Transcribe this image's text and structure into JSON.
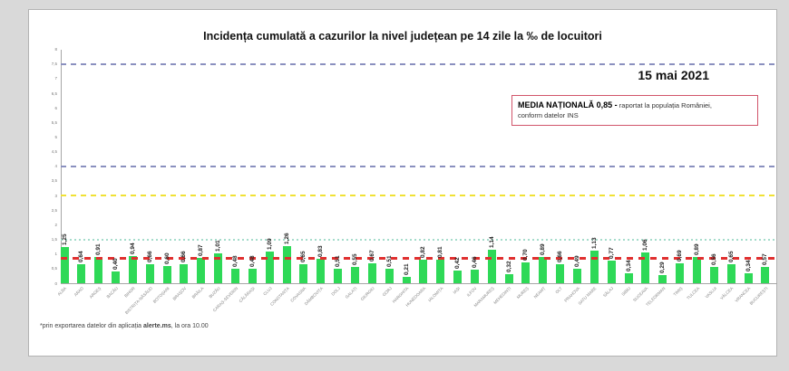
{
  "page": {
    "date_label": "15 mai 2021",
    "national_average_box": {
      "bold_text": "MEDIA NAȚIONALĂ  0,85 -",
      "normal_text": " raportat la populația României,",
      "second_line": "conform datelor INS"
    },
    "footnote": {
      "prefix": "*prin exportarea datelor din aplicația ",
      "bold": "alerte.ms",
      "suffix": ", la ora 10.00"
    }
  },
  "chart_data": {
    "type": "bar",
    "title": "Incidența cumulată a cazurilor la nivel județean pe 14 zile la ‰ de locuitori",
    "xlabel": "",
    "ylabel": "",
    "ylim": [
      0,
      8
    ],
    "ytick_step": 0.5,
    "grid": false,
    "decimal_separator": ",",
    "bar_color": "#2ed957",
    "categories": [
      "ALBA",
      "ARAD",
      "ARGEȘ",
      "BACĂU",
      "BIHOR",
      "BISTRIȚA-NĂSĂUD",
      "BOTOȘANI",
      "BRAȘOV",
      "BRĂILA",
      "BUZĂU",
      "CARAȘ-SEVERIN",
      "CĂLĂRAȘI",
      "CLUJ",
      "CONSTANȚA",
      "COVASNA",
      "DÂMBOVIȚA",
      "DOLJ",
      "GALAȚI",
      "GIURGIU",
      "GORJ",
      "HARGHITA",
      "HUNEDOARA",
      "IALOMIȚA",
      "IAȘI",
      "ILFOV",
      "MARAMUREȘ",
      "MEHEDINȚI",
      "MUREȘ",
      "NEAMȚ",
      "OLT",
      "PRAHOVA",
      "SATU MARE",
      "SĂLAJ",
      "SIBIU",
      "SUCEAVA",
      "TELEORMAN",
      "TIMIȘ",
      "TULCEA",
      "VASLUI",
      "VÂLCEA",
      "VRANCEA",
      "BUCUREȘTI"
    ],
    "values": [
      1.25,
      0.64,
      0.91,
      0.4,
      0.94,
      0.66,
      0.6,
      0.66,
      0.87,
      1.01,
      0.48,
      0.48,
      1.09,
      1.26,
      0.65,
      0.83,
      0.51,
      0.55,
      0.67,
      0.51,
      0.21,
      0.82,
      0.81,
      0.42,
      0.46,
      1.14,
      0.32,
      0.7,
      0.89,
      0.66,
      0.49,
      1.13,
      0.77,
      0.34,
      1.06,
      0.29,
      0.69,
      0.89,
      0.56,
      0.65,
      0.34,
      0.57
    ],
    "reference_lines": [
      {
        "name": "prag-7-5",
        "value": 7.5,
        "color": "#8a90bf",
        "style": "dashed"
      },
      {
        "name": "prag-4",
        "value": 4.0,
        "color": "#8a90bf",
        "style": "dashed"
      },
      {
        "name": "prag-3",
        "value": 3.0,
        "color": "#f0e135",
        "style": "dashed"
      },
      {
        "name": "prag-1-5",
        "value": 1.5,
        "color": "#a5dccb",
        "style": "dotted"
      },
      {
        "name": "media-nationala",
        "value": 0.85,
        "color": "#e02f2f",
        "style": "dashed-bold"
      }
    ],
    "legend": "none"
  }
}
